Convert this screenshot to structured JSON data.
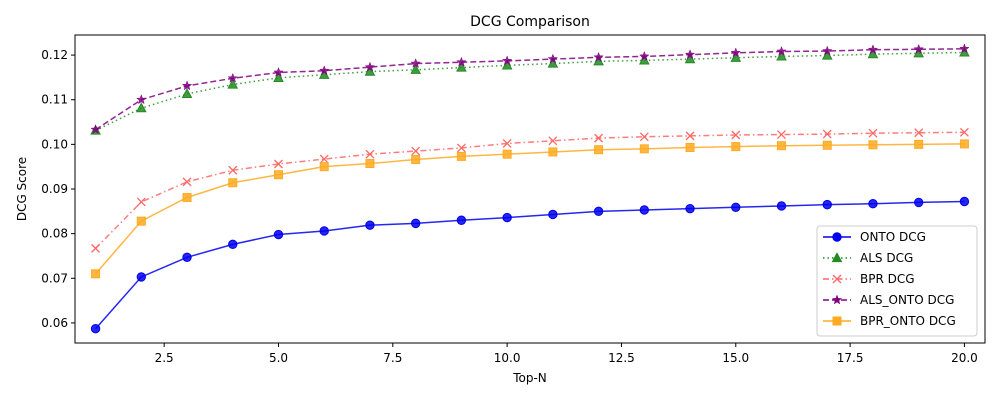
{
  "chart_data": {
    "type": "line",
    "title": "DCG Comparison",
    "xlabel": "Top-N",
    "ylabel": "DCG Score",
    "xlim": [
      0.55,
      20.45
    ],
    "ylim": [
      0.0555,
      0.1245
    ],
    "xticks": [
      2.5,
      5.0,
      7.5,
      10.0,
      12.5,
      15.0,
      17.5,
      20.0
    ],
    "xtick_labels": [
      "2.5",
      "5.0",
      "7.5",
      "10.0",
      "12.5",
      "15.0",
      "17.5",
      "20.0"
    ],
    "yticks": [
      0.06,
      0.07,
      0.08,
      0.09,
      0.1,
      0.11,
      0.12
    ],
    "ytick_labels": [
      "0.06",
      "0.07",
      "0.08",
      "0.09",
      "0.10",
      "0.11",
      "0.12"
    ],
    "grid": false,
    "legend_position": "lower-right",
    "x": [
      1,
      2,
      3,
      4,
      5,
      6,
      7,
      8,
      9,
      10,
      11,
      12,
      13,
      14,
      15,
      16,
      17,
      18,
      19,
      20
    ],
    "series": [
      {
        "name": "ONTO DCG",
        "color": "#0000ee",
        "linestyle": "solid",
        "marker": "circle",
        "values": [
          0.0587,
          0.0703,
          0.0747,
          0.0776,
          0.0798,
          0.0806,
          0.0819,
          0.0823,
          0.083,
          0.0836,
          0.0843,
          0.085,
          0.0853,
          0.0856,
          0.0859,
          0.0862,
          0.0865,
          0.0867,
          0.087,
          0.0872
        ]
      },
      {
        "name": "ALS DCG",
        "color": "#228b22",
        "linestyle": "dotted",
        "marker": "triangle",
        "values": [
          0.1031,
          0.1081,
          0.1113,
          0.1134,
          0.1149,
          0.1156,
          0.1163,
          0.1167,
          0.1172,
          0.1177,
          0.1181,
          0.1186,
          0.1188,
          0.1191,
          0.1194,
          0.1197,
          0.1199,
          0.1202,
          0.1204,
          0.1206
        ]
      },
      {
        "name": "BPR DCG",
        "color": "#ff6666",
        "linestyle": "dashdot",
        "marker": "x",
        "values": [
          0.0767,
          0.0871,
          0.0916,
          0.0942,
          0.0956,
          0.0967,
          0.0978,
          0.0985,
          0.0992,
          0.1002,
          0.1008,
          0.1014,
          0.1017,
          0.1019,
          0.1021,
          0.1022,
          0.1023,
          0.1025,
          0.1026,
          0.1027
        ]
      },
      {
        "name": "ALS_ONTO DCG",
        "color": "#800080",
        "linestyle": "dashed",
        "marker": "star",
        "values": [
          0.1033,
          0.11,
          0.1131,
          0.1148,
          0.1161,
          0.1165,
          0.1173,
          0.1181,
          0.1184,
          0.1187,
          0.1191,
          0.1195,
          0.1197,
          0.1201,
          0.1205,
          0.1208,
          0.1209,
          0.1212,
          0.1213,
          0.1214
        ]
      },
      {
        "name": "BPR_ONTO DCG",
        "color": "#ffaa22",
        "linestyle": "solid",
        "marker": "square",
        "values": [
          0.071,
          0.0828,
          0.0881,
          0.0914,
          0.0932,
          0.095,
          0.0957,
          0.0966,
          0.0973,
          0.0978,
          0.0983,
          0.0988,
          0.099,
          0.0993,
          0.0995,
          0.0997,
          0.0998,
          0.0999,
          0.1,
          0.1001
        ]
      }
    ]
  }
}
